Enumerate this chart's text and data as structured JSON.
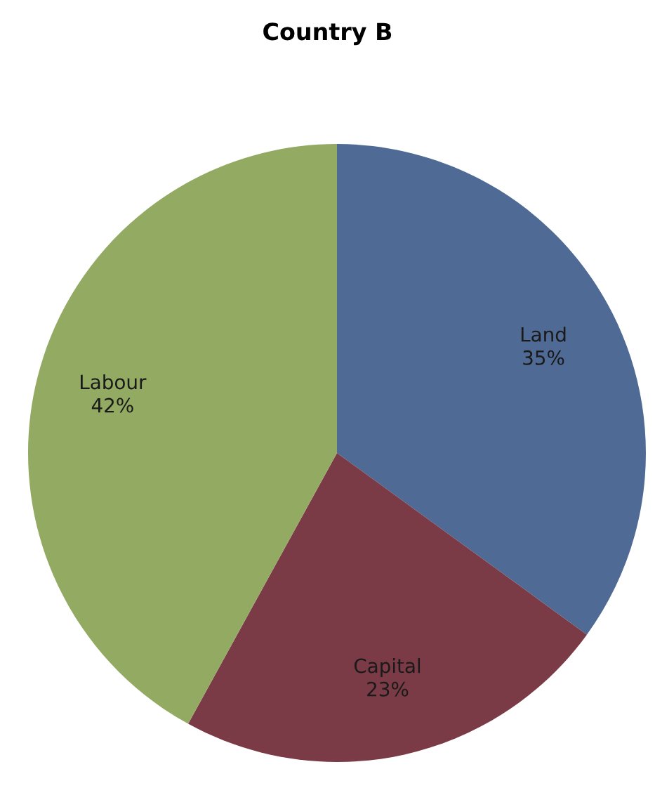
{
  "chart_data": {
    "type": "pie",
    "title": "Country B",
    "categories": [
      "Land",
      "Capital",
      "Labour"
    ],
    "values": [
      35,
      23,
      42
    ],
    "value_labels": [
      "35%",
      "23%",
      "42%"
    ],
    "colors": [
      "#4f6b95",
      "#7a3b47",
      "#93aa63"
    ]
  }
}
